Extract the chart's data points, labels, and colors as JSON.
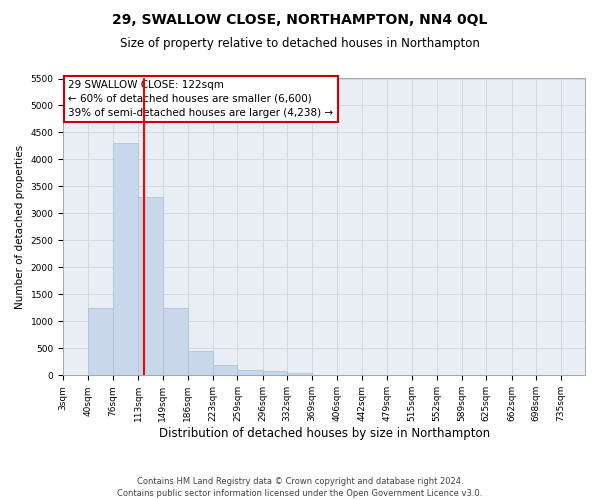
{
  "title": "29, SWALLOW CLOSE, NORTHAMPTON, NN4 0QL",
  "subtitle": "Size of property relative to detached houses in Northampton",
  "xlabel": "Distribution of detached houses by size in Northampton",
  "ylabel": "Number of detached properties",
  "footer_line1": "Contains HM Land Registry data © Crown copyright and database right 2024.",
  "footer_line2": "Contains public sector information licensed under the Open Government Licence v3.0.",
  "annotation_title": "29 SWALLOW CLOSE: 122sqm",
  "annotation_line2": "← 60% of detached houses are smaller (6,600)",
  "annotation_line3": "39% of semi-detached houses are larger (4,238) →",
  "bar_color": "#c8d8ea",
  "bar_edge_color": "#a8c0d8",
  "red_line_x": 122,
  "categories": [
    "3sqm",
    "40sqm",
    "76sqm",
    "113sqm",
    "149sqm",
    "186sqm",
    "223sqm",
    "259sqm",
    "296sqm",
    "332sqm",
    "369sqm",
    "406sqm",
    "442sqm",
    "479sqm",
    "515sqm",
    "552sqm",
    "589sqm",
    "625sqm",
    "662sqm",
    "698sqm",
    "735sqm"
  ],
  "bin_edges": [
    3,
    40,
    76,
    113,
    149,
    186,
    223,
    259,
    296,
    332,
    369,
    406,
    442,
    479,
    515,
    552,
    589,
    625,
    662,
    698,
    735,
    770
  ],
  "values": [
    0,
    1250,
    4300,
    3300,
    1250,
    450,
    200,
    100,
    75,
    50,
    0,
    0,
    0,
    0,
    0,
    0,
    0,
    0,
    0,
    0,
    0
  ],
  "ylim": [
    0,
    5500
  ],
  "yticks": [
    0,
    500,
    1000,
    1500,
    2000,
    2500,
    3000,
    3500,
    4000,
    4500,
    5000,
    5500
  ],
  "background_color": "#ffffff",
  "plot_bg_color": "#e8eef4",
  "grid_color": "#c8d0dc",
  "title_fontsize": 10,
  "subtitle_fontsize": 8.5,
  "xlabel_fontsize": 8.5,
  "ylabel_fontsize": 7.5,
  "tick_fontsize": 6.5,
  "annotation_box_color": "#ffffff",
  "annotation_border_color": "#cc0000",
  "annotation_fontsize": 7.5
}
